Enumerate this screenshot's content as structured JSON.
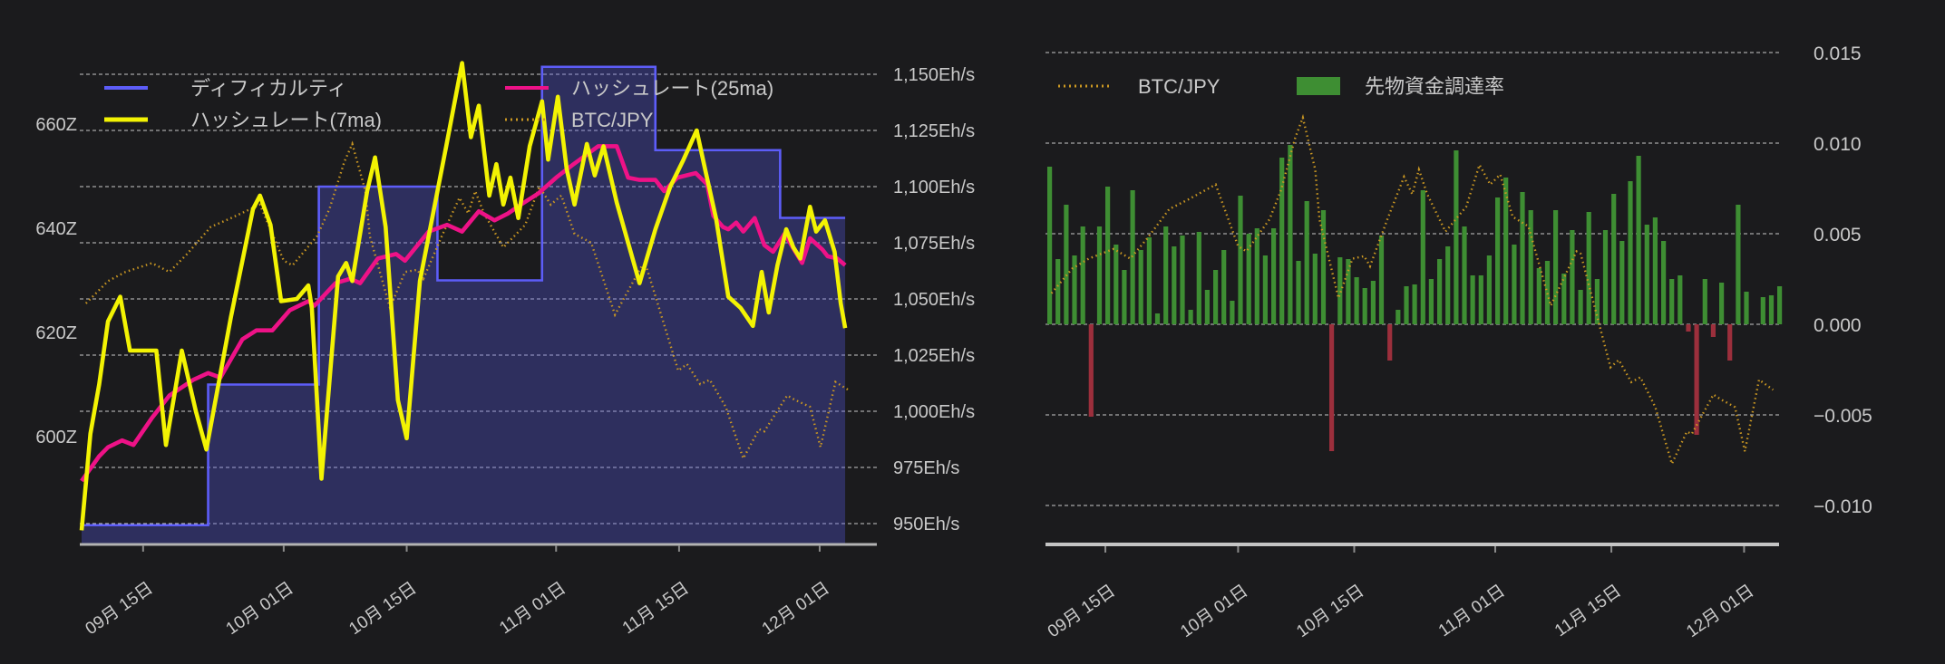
{
  "app": {
    "background": "#1b1b1d",
    "grid_color": "#e8e8e8",
    "axis_line_color": "#b3b3b3",
    "label_color": "#c9c9c9"
  },
  "chart_data": [
    {
      "id": "hashrate_difficulty_chart",
      "type": "line",
      "title": "",
      "legend": [
        {
          "label": "ディフィカルティ",
          "color": "#5d5df8",
          "style": "line"
        },
        {
          "label": "ハッシュレート(25ma)",
          "color": "#ee1287",
          "style": "line"
        },
        {
          "label": "ハッシュレート(7ma)",
          "color": "#f3f303",
          "style": "line"
        },
        {
          "label": "BTC/JPY",
          "color": "#cb9822",
          "style": "dotted"
        }
      ],
      "y_axis_left": {
        "unit": "Z",
        "ticks": [
          {
            "label": "660Z",
            "value": 660
          },
          {
            "label": "640Z",
            "value": 640
          },
          {
            "label": "620Z",
            "value": 620
          },
          {
            "label": "600Z",
            "value": 600
          }
        ]
      },
      "y_axis_right": {
        "unit": "Eh/s",
        "ticks": [
          {
            "label": "1,150Eh/s",
            "value": 1150
          },
          {
            "label": "1,125Eh/s",
            "value": 1125
          },
          {
            "label": "1,100Eh/s",
            "value": 1100
          },
          {
            "label": "1,075Eh/s",
            "value": 1075
          },
          {
            "label": "1,050Eh/s",
            "value": 1050
          },
          {
            "label": "1,025Eh/s",
            "value": 1025
          },
          {
            "label": "1,000Eh/s",
            "value": 1000
          },
          {
            "label": "975Eh/s",
            "value": 975
          },
          {
            "label": "950Eh/s",
            "value": 950
          }
        ]
      },
      "x_axis": {
        "ticks": [
          {
            "label": "09月 15日",
            "day": 7
          },
          {
            "label": "10月 01日",
            "day": 23
          },
          {
            "label": "10月 15日",
            "day": 37
          },
          {
            "label": "11月 01日",
            "day": 54
          },
          {
            "label": "11月 15日",
            "day": 68
          },
          {
            "label": "12月 01日",
            "day": 84
          }
        ]
      },
      "series": {
        "difficulty": {
          "name": "ディフィカルティ",
          "unit": "Z",
          "steps": [
            [
              0,
              583
            ],
            [
              14.4,
              610
            ],
            [
              27,
              648
            ],
            [
              40.5,
              630
            ],
            [
              52.4,
              671
            ],
            [
              65.3,
              655
            ],
            [
              79.5,
              642
            ]
          ],
          "end_day": 86.9
        },
        "hashrate_7ma": {
          "name": "ハッシュレート(7ma)",
          "unit": "Eh/s",
          "points": [
            [
              0,
              947
            ],
            [
              1,
              990
            ],
            [
              2,
              1012
            ],
            [
              3,
              1040
            ],
            [
              4.4,
              1051
            ],
            [
              5.5,
              1027
            ],
            [
              8.5,
              1027
            ],
            [
              9.6,
              985
            ],
            [
              11.4,
              1027
            ],
            [
              13,
              1000
            ],
            [
              14.2,
              983
            ],
            [
              17,
              1042
            ],
            [
              19.5,
              1090
            ],
            [
              20.3,
              1096
            ],
            [
              21.5,
              1083
            ],
            [
              22.7,
              1049
            ],
            [
              24.5,
              1050
            ],
            [
              25.8,
              1056
            ],
            [
              26.2,
              1046
            ],
            [
              27.3,
              970
            ],
            [
              29.2,
              1060
            ],
            [
              30.1,
              1066
            ],
            [
              30.8,
              1058
            ],
            [
              32.5,
              1098
            ],
            [
              33.4,
              1113
            ],
            [
              34.6,
              1082
            ],
            [
              36,
              1005
            ],
            [
              37,
              988
            ],
            [
              38.5,
              1058
            ],
            [
              40,
              1088
            ],
            [
              41.5,
              1118
            ],
            [
              43.3,
              1155
            ],
            [
              44.3,
              1122
            ],
            [
              45.2,
              1136
            ],
            [
              46.4,
              1096
            ],
            [
              47.2,
              1110
            ],
            [
              48,
              1092
            ],
            [
              48.8,
              1104
            ],
            [
              49.7,
              1086
            ],
            [
              51,
              1118
            ],
            [
              52.4,
              1138
            ],
            [
              53.1,
              1112
            ],
            [
              54.2,
              1140
            ],
            [
              55.2,
              1108
            ],
            [
              56.1,
              1092
            ],
            [
              57.5,
              1119
            ],
            [
              58.4,
              1105
            ],
            [
              59.4,
              1118
            ],
            [
              60.9,
              1093
            ],
            [
              62.2,
              1075
            ],
            [
              63.5,
              1057
            ],
            [
              65.3,
              1081
            ],
            [
              67,
              1100
            ],
            [
              68.5,
              1112
            ],
            [
              70,
              1125
            ],
            [
              71,
              1107
            ],
            [
              72.2,
              1086
            ],
            [
              73.6,
              1051
            ],
            [
              75,
              1046
            ],
            [
              76.4,
              1038
            ],
            [
              77.4,
              1062
            ],
            [
              78.2,
              1044
            ],
            [
              79.2,
              1065
            ],
            [
              80.2,
              1081
            ],
            [
              81,
              1073
            ],
            [
              81.8,
              1068
            ],
            [
              82.9,
              1091
            ],
            [
              83.6,
              1080
            ],
            [
              84.6,
              1085
            ],
            [
              85.7,
              1071
            ],
            [
              86.4,
              1048
            ],
            [
              86.9,
              1037
            ]
          ]
        },
        "hashrate_25ma": {
          "name": "ハッシュレート(25ma)",
          "unit": "Eh/s",
          "points": [
            [
              0,
              969
            ],
            [
              2,
              980
            ],
            [
              3,
              984
            ],
            [
              4.6,
              987
            ],
            [
              5.9,
              985
            ],
            [
              8,
              997
            ],
            [
              10,
              1007
            ],
            [
              12.7,
              1014
            ],
            [
              14.4,
              1017
            ],
            [
              15.8,
              1015
            ],
            [
              18.3,
              1032
            ],
            [
              19.9,
              1036
            ],
            [
              21.7,
              1036
            ],
            [
              23.7,
              1045
            ],
            [
              25.8,
              1049
            ],
            [
              26.5,
              1047
            ],
            [
              28.9,
              1057
            ],
            [
              30.6,
              1059
            ],
            [
              31.7,
              1057
            ],
            [
              33.7,
              1068
            ],
            [
              35.8,
              1070
            ],
            [
              36.8,
              1067
            ],
            [
              39.5,
              1080
            ],
            [
              41.6,
              1083
            ],
            [
              43.3,
              1080
            ],
            [
              45.2,
              1089
            ],
            [
              47,
              1085
            ],
            [
              48.5,
              1088
            ],
            [
              50,
              1092
            ],
            [
              52,
              1097
            ],
            [
              54,
              1104
            ],
            [
              56,
              1110
            ],
            [
              58.8,
              1118
            ],
            [
              60.9,
              1118
            ],
            [
              62.2,
              1104
            ],
            [
              63.5,
              1103
            ],
            [
              65.3,
              1103
            ],
            [
              66.3,
              1098
            ],
            [
              67.8,
              1104
            ],
            [
              69.9,
              1106
            ],
            [
              71.2,
              1101
            ],
            [
              71.9,
              1087
            ],
            [
              73,
              1082
            ],
            [
              73.6,
              1081
            ],
            [
              74.5,
              1084
            ],
            [
              75.3,
              1080
            ],
            [
              76.6,
              1086
            ],
            [
              77.7,
              1074
            ],
            [
              78.7,
              1071
            ],
            [
              80,
              1079
            ],
            [
              82,
              1066
            ],
            [
              82.9,
              1077
            ],
            [
              84.3,
              1072
            ],
            [
              84.9,
              1069
            ],
            [
              86,
              1068
            ],
            [
              86.9,
              1065
            ]
          ]
        },
        "btcjpy_overlay": {
          "name": "BTC/JPY",
          "overlay_min_ehs": 979,
          "overlay_max_ehs": 1119
        }
      }
    },
    {
      "id": "funding_rate_chart",
      "type": "bar",
      "title": "",
      "legend": [
        {
          "label": "BTC/JPY",
          "color": "#cb9822",
          "style": "dotted"
        },
        {
          "label": "先物資金調達率",
          "color": "#3e8e33",
          "style": "rect"
        }
      ],
      "y_axis_right": {
        "ticks": [
          {
            "label": "0.015",
            "value": 0.015
          },
          {
            "label": "0.010",
            "value": 0.01
          },
          {
            "label": "0.005",
            "value": 0.005
          },
          {
            "label": "0.000",
            "value": 0.0
          },
          {
            "label": "−0.005",
            "value": -0.005
          },
          {
            "label": "−0.010",
            "value": -0.01
          }
        ]
      },
      "x_axis": {
        "ticks": [
          {
            "label": "09月 15日",
            "day": 7
          },
          {
            "label": "10月 01日",
            "day": 23
          },
          {
            "label": "10月 15日",
            "day": 37
          },
          {
            "label": "11月 01日",
            "day": 54
          },
          {
            "label": "11月 15日",
            "day": 68
          },
          {
            "label": "12月 01日",
            "day": 84
          }
        ]
      },
      "bars": {
        "name": "先物資金調達率",
        "positive_color": "#3e8e33",
        "negative_color": "#9c2f3c",
        "values": [
          0.0087,
          0.0036,
          0.0066,
          0.0038,
          0.0054,
          -0.0051,
          0.0054,
          0.0076,
          0.0044,
          0.003,
          0.0074,
          0.0041,
          0.0048,
          0.0006,
          0.0054,
          0.0043,
          0.0049,
          0.0008,
          0.0051,
          0.0019,
          0.003,
          0.0041,
          0.0013,
          0.0071,
          0.005,
          0.0053,
          0.0038,
          0.0053,
          0.0092,
          0.0099,
          0.0035,
          0.0068,
          0.0039,
          0.0063,
          -0.007,
          0.0037,
          0.0036,
          0.0026,
          0.002,
          0.0024,
          0.0049,
          -0.002,
          0.0008,
          0.0021,
          0.0022,
          0.0074,
          0.0025,
          0.0036,
          0.0043,
          0.0096,
          0.0054,
          0.0027,
          0.0027,
          0.0038,
          0.007,
          0.0081,
          0.0044,
          0.0073,
          0.0063,
          0.0031,
          0.0035,
          0.0063,
          0.0028,
          0.0052,
          0.0019,
          0.0062,
          0.0025,
          0.0052,
          0.0072,
          0.0046,
          0.0079,
          0.0093,
          0.0055,
          0.0059,
          0.0046,
          0.0025,
          0.0027,
          -0.0004,
          -0.0061,
          0.0025,
          -0.0007,
          0.0023,
          -0.002,
          0.0066,
          0.0018,
          0.0,
          0.0015,
          0.0016,
          0.0021
        ]
      },
      "btcjpy_overlay": {
        "name": "BTC/JPY",
        "overlay_min_rate": -0.0077,
        "overlay_max_rate": 0.0114
      }
    }
  ],
  "btcjpy_normalized": [
    [
      0.5,
      0.493
    ],
    [
      3,
      0.564
    ],
    [
      5,
      0.593
    ],
    [
      8,
      0.621
    ],
    [
      10,
      0.593
    ],
    [
      12,
      0.65
    ],
    [
      14.7,
      0.736
    ],
    [
      17,
      0.764
    ],
    [
      20.3,
      0.807
    ],
    [
      23,
      0.629
    ],
    [
      24,
      0.614
    ],
    [
      26.8,
      0.707
    ],
    [
      28.2,
      0.793
    ],
    [
      29.9,
      0.943
    ],
    [
      30.8,
      1.0
    ],
    [
      32.3,
      0.85
    ],
    [
      32.8,
      0.707
    ],
    [
      35.1,
      0.479
    ],
    [
      36.8,
      0.593
    ],
    [
      38.2,
      0.6
    ],
    [
      38.9,
      0.571
    ],
    [
      41,
      0.707
    ],
    [
      43,
      0.829
    ],
    [
      44,
      0.779
    ],
    [
      44.8,
      0.85
    ],
    [
      45.8,
      0.779
    ],
    [
      48,
      0.671
    ],
    [
      50.5,
      0.743
    ],
    [
      52.1,
      0.864
    ],
    [
      53.4,
      0.807
    ],
    [
      54.6,
      0.836
    ],
    [
      56.1,
      0.714
    ],
    [
      58,
      0.686
    ],
    [
      60.7,
      0.457
    ],
    [
      63.8,
      0.614
    ],
    [
      64.3,
      0.607
    ],
    [
      67.9,
      0.279
    ],
    [
      68.9,
      0.3
    ],
    [
      70.4,
      0.236
    ],
    [
      71.5,
      0.25
    ],
    [
      73.3,
      0.164
    ],
    [
      75.3,
      0.0
    ],
    [
      77.1,
      0.093
    ],
    [
      77.7,
      0.086
    ],
    [
      80.3,
      0.2
    ],
    [
      81.2,
      0.186
    ],
    [
      82.9,
      0.164
    ],
    [
      84.1,
      0.036
    ],
    [
      85.8,
      0.243
    ],
    [
      87.5,
      0.214
    ]
  ]
}
